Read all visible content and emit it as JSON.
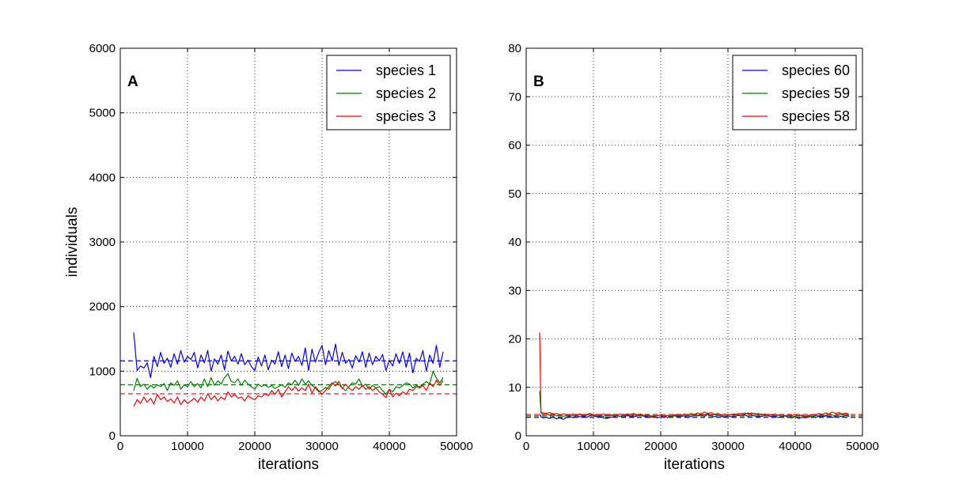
{
  "chart_data": [
    {
      "type": "line",
      "panel_label": "A",
      "xlabel": "iterations",
      "ylabel": "individuals",
      "xlim": [
        0,
        50000
      ],
      "ylim": [
        0,
        6000
      ],
      "xticks": [
        "0",
        "10000",
        "20000",
        "30000",
        "40000",
        "50000"
      ],
      "yticks": [
        "0",
        "1000",
        "2000",
        "3000",
        "4000",
        "5000",
        "6000"
      ],
      "grid": true,
      "legend_position": "top-right",
      "x": [
        2000,
        2500,
        3000,
        3500,
        4000,
        4500,
        5000,
        5500,
        6000,
        6500,
        7000,
        7500,
        8000,
        8500,
        9000,
        9500,
        10000,
        10500,
        11000,
        11500,
        12000,
        12500,
        13000,
        13500,
        14000,
        14500,
        15000,
        15500,
        16000,
        16500,
        17000,
        17500,
        18000,
        18500,
        19000,
        19500,
        20000,
        20500,
        21000,
        21500,
        22000,
        22500,
        23000,
        23500,
        24000,
        24500,
        25000,
        25500,
        26000,
        26500,
        27000,
        27500,
        28000,
        28500,
        29000,
        29500,
        30000,
        30500,
        31000,
        31500,
        32000,
        32500,
        33000,
        33500,
        34000,
        34500,
        35000,
        35500,
        36000,
        36500,
        37000,
        37500,
        38000,
        38500,
        39000,
        39500,
        40000,
        40500,
        41000,
        41500,
        42000,
        42500,
        43000,
        43500,
        44000,
        44500,
        45000,
        45500,
        46000,
        46500,
        47000,
        47500,
        48000
      ],
      "series": [
        {
          "name": "species 1",
          "color": "#0000ff",
          "mean": 1160,
          "values": [
            1600,
            1010,
            1080,
            1050,
            1130,
            900,
            1230,
            1070,
            1290,
            1120,
            1200,
            1060,
            1270,
            1110,
            1320,
            1140,
            1230,
            1180,
            1290,
            1050,
            1250,
            1130,
            1320,
            1000,
            1190,
            1110,
            1250,
            1020,
            1310,
            1160,
            1230,
            1110,
            1270,
            1100,
            1170,
            1070,
            1010,
            1220,
            1080,
            1250,
            1020,
            1170,
            1110,
            1300,
            1070,
            1250,
            1040,
            1280,
            1150,
            1230,
            1090,
            1360,
            1010,
            1340,
            1140,
            1290,
            1400,
            1100,
            1320,
            1160,
            1420,
            1090,
            1290,
            1120,
            1180,
            1050,
            1240,
            1140,
            1300,
            1060,
            1280,
            1100,
            1230,
            1160,
            1260,
            1010,
            1170,
            1080,
            1270,
            1120,
            1300,
            1060,
            1280,
            970,
            1200,
            1150,
            1320,
            1000,
            1250,
            1120,
            1400,
            1060,
            1300
          ]
        },
        {
          "name": "species 2",
          "color": "#008000",
          "mean": 790,
          "values": [
            700,
            890,
            760,
            800,
            720,
            780,
            740,
            790,
            760,
            810,
            700,
            820,
            780,
            850,
            720,
            790,
            760,
            840,
            760,
            810,
            740,
            880,
            760,
            900,
            780,
            850,
            800,
            900,
            960,
            840,
            820,
            880,
            780,
            860,
            800,
            760,
            720,
            800,
            760,
            790,
            750,
            780,
            730,
            760,
            790,
            750,
            820,
            790,
            860,
            780,
            880,
            800,
            850,
            780,
            740,
            680,
            700,
            750,
            720,
            800,
            840,
            790,
            740,
            700,
            760,
            820,
            800,
            880,
            760,
            800,
            720,
            780,
            740,
            760,
            700,
            640,
            720,
            680,
            760,
            740,
            780,
            820,
            800,
            740,
            780,
            760,
            800,
            840,
            800,
            1000,
            890,
            820,
            900
          ]
        },
        {
          "name": "species 3",
          "color": "#ff0000",
          "mean": 650,
          "values": [
            450,
            560,
            500,
            600,
            520,
            580,
            490,
            640,
            560,
            600,
            530,
            570,
            510,
            600,
            480,
            560,
            500,
            540,
            580,
            520,
            600,
            540,
            650,
            560,
            620,
            540,
            600,
            560,
            680,
            600,
            640,
            580,
            600,
            540,
            620,
            580,
            560,
            620,
            600,
            650,
            620,
            700,
            640,
            720,
            600,
            680,
            760,
            700,
            760,
            690,
            740,
            700,
            800,
            660,
            760,
            700,
            640,
            700,
            760,
            820,
            770,
            840,
            730,
            800,
            740,
            700,
            760,
            720,
            780,
            720,
            760,
            700,
            740,
            680,
            640,
            590,
            720,
            600,
            660,
            620,
            680,
            640,
            720,
            700,
            760,
            740,
            780,
            700,
            820,
            760,
            860,
            780,
            860
          ]
        }
      ]
    },
    {
      "type": "line",
      "panel_label": "B",
      "xlabel": "iterations",
      "ylabel": "",
      "xlim": [
        0,
        50000
      ],
      "ylim": [
        0,
        80
      ],
      "xticks": [
        "0",
        "10000",
        "20000",
        "30000",
        "40000",
        "50000"
      ],
      "yticks": [
        "0",
        "10",
        "20",
        "30",
        "40",
        "50",
        "60",
        "70",
        "80"
      ],
      "grid": true,
      "legend_position": "top-right",
      "x": [
        2000,
        2200,
        2500,
        3000,
        3500,
        4000,
        4500,
        5000,
        5500,
        6000,
        6500,
        7000,
        7500,
        8000,
        8500,
        9000,
        9500,
        10000,
        10500,
        11000,
        11500,
        12000,
        12500,
        13000,
        13500,
        14000,
        14500,
        15000,
        15500,
        16000,
        16500,
        17000,
        17500,
        18000,
        18500,
        19000,
        19500,
        20000,
        20500,
        21000,
        21500,
        22000,
        22500,
        23000,
        23500,
        24000,
        24500,
        25000,
        25500,
        26000,
        26500,
        27000,
        27500,
        28000,
        28500,
        29000,
        29500,
        30000,
        30500,
        31000,
        31500,
        32000,
        32500,
        33000,
        33500,
        34000,
        34500,
        35000,
        35500,
        36000,
        36500,
        37000,
        37500,
        38000,
        38500,
        39000,
        39500,
        40000,
        40500,
        41000,
        41500,
        42000,
        42500,
        43000,
        43500,
        44000,
        44500,
        45000,
        45500,
        46000,
        46500,
        47000,
        47500,
        48000
      ],
      "series": [
        {
          "name": "species 60",
          "color": "#0000ff",
          "mean": 3.8,
          "values": [
            4.5,
            3.9,
            3.7,
            3.8,
            3.6,
            3.9,
            3.5,
            3.7,
            3.4,
            3.8,
            4.0,
            3.7,
            4.1,
            3.9,
            4.0,
            3.8,
            4.2,
            4.1,
            3.9,
            4.0,
            3.7,
            3.6,
            3.8,
            3.9,
            4.1,
            4.0,
            3.8,
            4.2,
            4.0,
            3.9,
            4.1,
            4.3,
            4.0,
            3.9,
            3.8,
            4.0,
            3.7,
            3.9,
            4.1,
            3.8,
            4.0,
            4.2,
            3.9,
            4.0,
            4.1,
            3.8,
            4.0,
            4.2,
            4.1,
            4.3,
            4.0,
            4.4,
            4.1,
            3.9,
            4.2,
            4.0,
            3.8,
            4.1,
            3.9,
            4.0,
            4.2,
            4.1,
            4.3,
            4.0,
            4.2,
            4.1,
            3.9,
            4.0,
            4.2,
            4.1,
            3.9,
            4.0,
            3.8,
            3.9,
            4.1,
            3.8,
            3.7,
            3.9,
            3.6,
            3.8,
            3.7,
            3.9,
            4.0,
            3.8,
            4.0,
            3.9,
            4.1,
            4.0,
            3.8,
            4.0,
            4.1,
            3.9,
            4.2,
            4.0
          ]
        },
        {
          "name": "species 59",
          "color": "#008000",
          "mean": 4.1,
          "values": [
            9.2,
            4.8,
            4.3,
            4.5,
            4.2,
            4.4,
            4.1,
            4.3,
            4.0,
            4.2,
            4.4,
            4.1,
            4.3,
            4.5,
            4.2,
            4.4,
            4.6,
            4.3,
            4.1,
            4.2,
            4.0,
            4.3,
            4.1,
            4.4,
            4.2,
            4.0,
            4.3,
            4.5,
            4.4,
            4.6,
            4.3,
            4.5,
            4.2,
            4.4,
            4.1,
            4.0,
            4.2,
            4.3,
            4.1,
            4.2,
            3.9,
            4.1,
            4.3,
            4.0,
            4.2,
            4.1,
            4.3,
            4.4,
            4.2,
            4.5,
            4.3,
            4.6,
            4.2,
            4.4,
            4.1,
            4.3,
            4.0,
            4.2,
            4.4,
            4.3,
            4.6,
            4.4,
            4.7,
            4.5,
            4.7,
            4.4,
            4.6,
            4.3,
            4.5,
            4.2,
            4.4,
            4.1,
            4.3,
            4.0,
            4.2,
            4.1,
            3.9,
            4.0,
            4.2,
            4.1,
            3.9,
            4.1,
            4.0,
            4.2,
            4.1,
            4.3,
            4.2,
            4.4,
            4.3,
            4.1,
            4.5,
            4.3,
            4.4,
            4.2
          ]
        },
        {
          "name": "species 58",
          "color": "#ff0000",
          "mean": 4.4,
          "values": [
            21.3,
            4.9,
            4.7,
            4.6,
            4.8,
            4.5,
            4.6,
            4.3,
            4.5,
            4.4,
            4.2,
            4.5,
            4.3,
            4.4,
            4.1,
            4.3,
            4.5,
            4.2,
            4.4,
            4.3,
            4.5,
            4.2,
            4.4,
            4.1,
            4.3,
            4.5,
            4.2,
            4.4,
            4.1,
            4.3,
            4.2,
            4.4,
            4.1,
            4.3,
            4.0,
            4.2,
            4.1,
            4.3,
            4.0,
            4.2,
            4.1,
            4.3,
            4.4,
            4.2,
            4.5,
            4.3,
            4.6,
            4.4,
            4.7,
            4.5,
            4.9,
            4.6,
            4.8,
            4.4,
            4.6,
            4.3,
            4.5,
            4.2,
            4.4,
            4.5,
            4.3,
            4.6,
            4.4,
            4.7,
            4.5,
            4.6,
            4.3,
            4.5,
            4.2,
            4.4,
            4.3,
            4.5,
            4.2,
            4.4,
            4.1,
            4.3,
            4.2,
            4.4,
            4.1,
            4.3,
            4.0,
            4.2,
            4.4,
            4.3,
            4.6,
            4.4,
            4.7,
            4.5,
            4.9,
            4.6,
            4.8,
            4.5,
            4.7,
            4.4
          ]
        }
      ]
    }
  ]
}
